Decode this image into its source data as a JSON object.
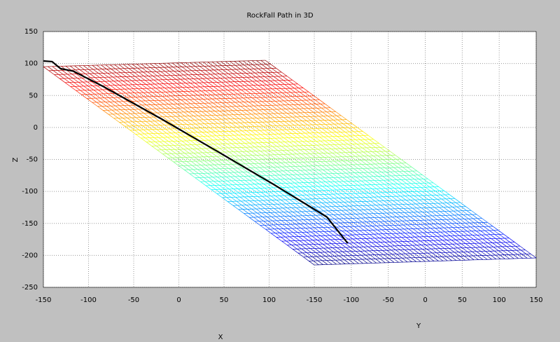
{
  "chart_data": {
    "type": "surface3d",
    "title": "RockFall Path in 3D",
    "x_label": "X",
    "y_label": "Y",
    "z_label": "Z",
    "xlim": [
      -150,
      150
    ],
    "xticks": [
      -150,
      -100,
      -50,
      0,
      50,
      100
    ],
    "ylim": [
      -150,
      150
    ],
    "yticks": [
      -150,
      -100,
      -50,
      0,
      50,
      100,
      150
    ],
    "zlim": [
      -250,
      150
    ],
    "zticks": [
      150,
      100,
      50,
      0,
      -50,
      -100,
      -150,
      -200,
      -250
    ],
    "grid": true,
    "colormap": "jet",
    "surface": {
      "x": [
        -150,
        150
      ],
      "y": [
        -150,
        150
      ],
      "z": [
        [
          95,
          105
        ],
        [
          -215,
          -204
        ]
      ]
    },
    "path": {
      "color": "#000000",
      "x": [
        -150,
        -142,
        -135,
        -125,
        -100,
        -50,
        0,
        50,
        100,
        119
      ],
      "y": [
        -150,
        -148,
        -145,
        -140,
        -130,
        -112,
        -97,
        -83,
        -72,
        -67
      ],
      "z": [
        104,
        103,
        92,
        88,
        64,
        13,
        -38,
        -89,
        -140,
        -181
      ]
    }
  }
}
